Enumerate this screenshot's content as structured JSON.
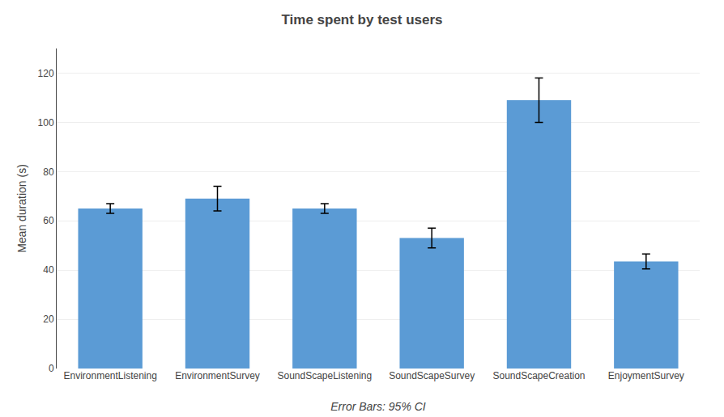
{
  "chart_data": {
    "type": "bar",
    "title": "Time spent by test users",
    "ylabel": "Mean duration (s)",
    "xlabel": "Error Bars: 95% CI",
    "categories": [
      "EnvironmentListening",
      "EnvironmentSurvey",
      "SoundScapeListening",
      "SoundScapeSurvey",
      "SoundScapeCreation",
      "EnjoymentSurvey"
    ],
    "values": [
      65.0,
      69.0,
      65.0,
      53.0,
      109.0,
      43.5
    ],
    "errors": [
      2.0,
      5.0,
      2.0,
      4.0,
      9.0,
      3.0
    ],
    "color": "#5B9BD5",
    "ylim": [
      0,
      130
    ],
    "yticks": [
      0,
      20,
      40,
      60,
      80,
      100,
      120
    ],
    "grid": true
  }
}
